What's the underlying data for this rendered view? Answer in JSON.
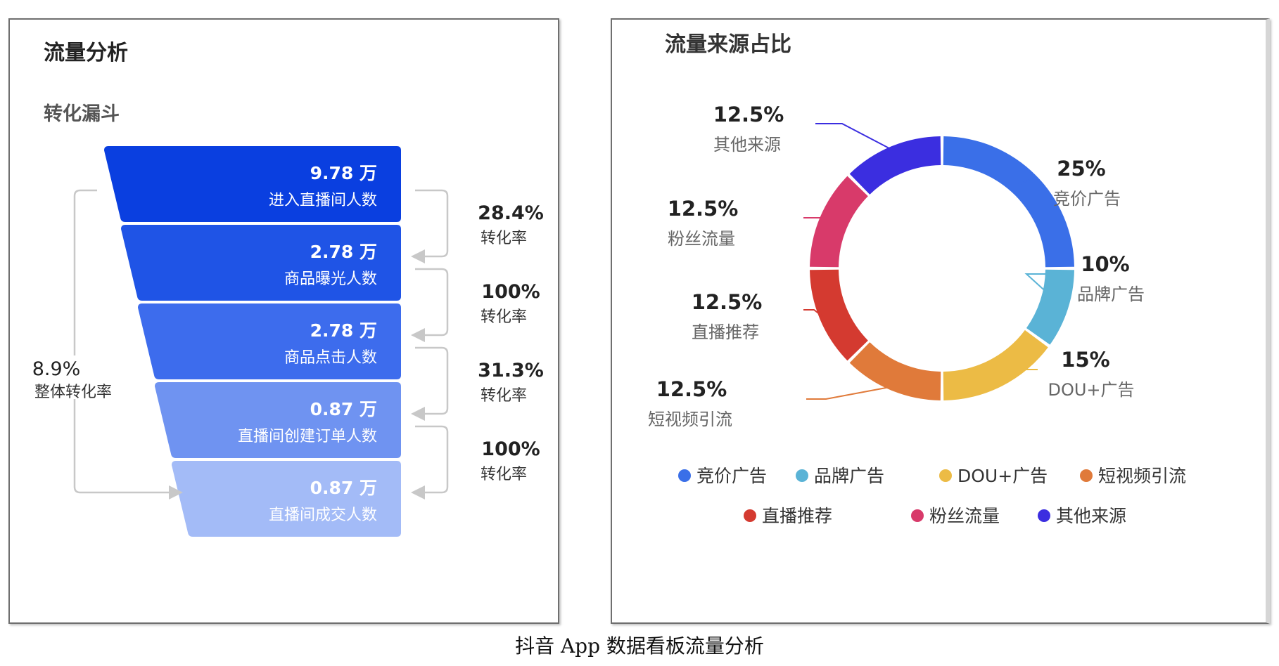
{
  "caption": "抖音 App 数据看板流量分析",
  "left_panel": {
    "title": "流量分析",
    "subtitle": "转化漏斗"
  },
  "right_panel": {
    "title": "流量来源占比"
  },
  "chart_data": [
    {
      "type": "funnel",
      "title": "转化漏斗",
      "unit": "万",
      "stages": [
        {
          "label": "进入直播间人数",
          "value": 9.78,
          "display": "9.78 万"
        },
        {
          "label": "商品曝光人数",
          "value": 2.78,
          "display": "2.78 万"
        },
        {
          "label": "商品点击人数",
          "value": 2.78,
          "display": "2.78 万"
        },
        {
          "label": "直播间创建订单人数",
          "value": 0.87,
          "display": "0.87 万"
        },
        {
          "label": "直播间成交人数",
          "value": 0.87,
          "display": "0.87 万"
        }
      ],
      "step_rates": [
        {
          "value": "28.4%",
          "label": "转化率"
        },
        {
          "value": "100%",
          "label": "转化率"
        },
        {
          "value": "31.3%",
          "label": "转化率"
        },
        {
          "value": "100%",
          "label": "转化率"
        }
      ],
      "overall_rate": {
        "value": "8.9%",
        "label": "整体转化率"
      },
      "colors": [
        "#0a3fe0",
        "#1f54e6",
        "#3d6ced",
        "#6f93f1",
        "#a3bbf7"
      ]
    },
    {
      "type": "pie",
      "style": "donut",
      "title": "流量来源占比",
      "legend_position": "bottom",
      "slices": [
        {
          "label": "竞价广告",
          "value": 25,
          "display": "25%",
          "color": "#3a6fe8"
        },
        {
          "label": "品牌广告",
          "value": 10,
          "display": "10%",
          "color": "#5ab3d6"
        },
        {
          "label": "DOU+广告",
          "value": 15,
          "display": "15%",
          "color": "#ecbb45"
        },
        {
          "label": "短视频引流",
          "value": 12.5,
          "display": "12.5%",
          "color": "#e07a3a"
        },
        {
          "label": "直播推荐",
          "value": 12.5,
          "display": "12.5%",
          "color": "#d43a30"
        },
        {
          "label": "粉丝流量",
          "value": 12.5,
          "display": "12.5%",
          "color": "#d83a6a"
        },
        {
          "label": "其他来源",
          "value": 12.5,
          "display": "12.5%",
          "color": "#3b2ee0"
        }
      ]
    }
  ]
}
